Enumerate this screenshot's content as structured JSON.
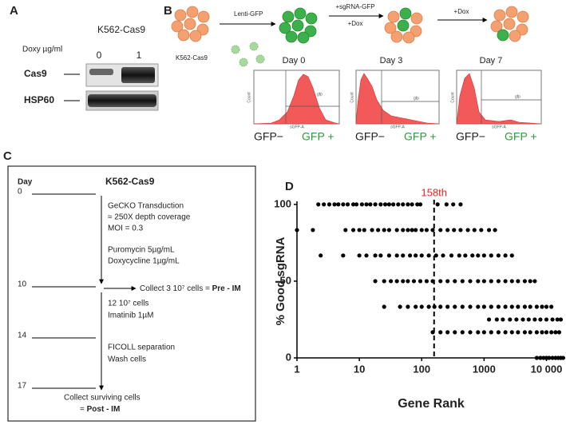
{
  "panel_a": {
    "label": "A",
    "title": "K562-Cas9",
    "dose_label": "Doxy µg/ml",
    "doses": [
      "0",
      "1"
    ],
    "rows": [
      "Cas9",
      "HSP60"
    ]
  },
  "panel_b": {
    "label": "B",
    "start": "K562-Cas9",
    "step1": "Lenti-GFP",
    "step2_top": "+sgRNA-GFP",
    "step2_bottom": "+Dox",
    "step3": "+Dox",
    "days": [
      "Day 0",
      "Day 3",
      "Day 7"
    ],
    "axis_y": "Count",
    "axis_x": "sGFP-A",
    "gate": "gfp",
    "neg": "GFP−",
    "pos": "GFP +"
  },
  "panel_c": {
    "label": "C",
    "day_header": "Day",
    "title": "K562-Cas9",
    "days": [
      "0",
      "10",
      "14",
      "17"
    ],
    "steps": [
      "GeCKO Transduction",
      "≈ 250X depth coverage",
      "MOI = 0.3",
      "Puromycin 5µg/mL",
      "Doxycycline 1µg/mL",
      "12 10⁷ cells",
      "Imatinib 1µM",
      "FICOLL separation",
      "Wash cells"
    ],
    "collect_pre": "Collect 3 10⁷ cells = ",
    "pre": "Pre - IM",
    "collect_post": "Collect surviving cells",
    "post_prefix": "= ",
    "post": "Post - IM"
  },
  "chart_data": {
    "type": "scatter",
    "label": "D",
    "x_label": "Gene Rank",
    "y_label": "% Good sgRNA",
    "xscale": "log",
    "xlim": [
      1,
      20000
    ],
    "xticks": [
      1,
      10,
      100,
      1000,
      {
        "value": 10000,
        "label": "10 000"
      }
    ],
    "ylim": [
      0,
      102
    ],
    "yticks": [
      0,
      50,
      100
    ],
    "color": "#000000",
    "annotation": {
      "x": 158,
      "label": "158th",
      "color": "#e8251f"
    },
    "series": [
      {
        "x": [
          2.2,
          2.7,
          3.3,
          4,
          4.6,
          5.5,
          6.5,
          8,
          9,
          11,
          13,
          15,
          18,
          22,
          26,
          30,
          35,
          42,
          50,
          60,
          70,
          85,
          95,
          180,
          250,
          320,
          420
        ],
        "values": [
          100,
          100,
          100,
          100,
          100,
          100,
          100,
          100,
          100,
          100,
          100,
          100,
          100,
          100,
          100,
          100,
          100,
          100,
          100,
          100,
          100,
          100,
          100,
          100,
          100,
          100,
          100
        ]
      },
      {
        "x": [
          1,
          1.8,
          6,
          8,
          10,
          12,
          16,
          20,
          25,
          30,
          40,
          50,
          60,
          70,
          80,
          100,
          120,
          150,
          200,
          260,
          330,
          420,
          550,
          700,
          900,
          1200,
          1500
        ],
        "values": [
          83.3,
          83.3,
          83.3,
          83.3,
          83.3,
          83.3,
          83.3,
          83.3,
          83.3,
          83.3,
          83.3,
          83.3,
          83.3,
          83.3,
          83.3,
          83.3,
          83.3,
          83.3,
          83.3,
          83.3,
          83.3,
          83.3,
          83.3,
          83.3,
          83.3,
          83.3,
          83.3
        ]
      },
      {
        "x": [
          2.4,
          5.5,
          10,
          13,
          18,
          22,
          30,
          40,
          50,
          65,
          80,
          100,
          130,
          170,
          220,
          300,
          400,
          500,
          650,
          800,
          1000,
          1300,
          1700,
          2200,
          2800
        ],
        "values": [
          66.7,
          66.7,
          66.7,
          66.7,
          66.7,
          66.7,
          66.7,
          66.7,
          66.7,
          66.7,
          66.7,
          66.7,
          66.7,
          66.7,
          66.7,
          66.7,
          66.7,
          66.7,
          66.7,
          66.7,
          66.7,
          66.7,
          66.7,
          66.7,
          66.7
        ]
      },
      {
        "x": [
          18,
          25,
          32,
          40,
          50,
          60,
          75,
          95,
          120,
          150,
          200,
          260,
          340,
          450,
          600,
          800,
          1000,
          1300,
          1700,
          2200,
          2800,
          3500,
          4500,
          5500,
          6500
        ],
        "values": [
          50,
          50,
          50,
          50,
          50,
          50,
          50,
          50,
          50,
          50,
          50,
          50,
          50,
          50,
          50,
          50,
          50,
          50,
          50,
          50,
          50,
          50,
          50,
          50,
          50
        ]
      },
      {
        "x": [
          25,
          45,
          60,
          80,
          100,
          130,
          160,
          200,
          260,
          340,
          450,
          600,
          800,
          1000,
          1300,
          1700,
          2200,
          2800,
          3500,
          4500,
          5500,
          7000,
          8500,
          10000,
          12000
        ],
        "values": [
          33.3,
          33.3,
          33.3,
          33.3,
          33.3,
          33.3,
          33.3,
          33.3,
          33.3,
          33.3,
          33.3,
          33.3,
          33.3,
          33.3,
          33.3,
          33.3,
          33.3,
          33.3,
          33.3,
          33.3,
          33.3,
          33.3,
          33.3,
          33.3,
          33.3
        ]
      },
      {
        "x": [
          1200,
          1600,
          2000,
          2600,
          3300,
          4200,
          5200,
          6500,
          8000,
          10000,
          12500,
          15000,
          17000
        ],
        "values": [
          25,
          25,
          25,
          25,
          25,
          25,
          25,
          25,
          25,
          25,
          25,
          25,
          25
        ]
      },
      {
        "x": [
          150,
          200,
          260,
          340,
          450,
          600,
          800,
          1000,
          1300,
          1700,
          2200,
          2800,
          3500,
          4500,
          5500,
          7000,
          8500,
          10000,
          12000,
          14000,
          16000
        ],
        "values": [
          16.7,
          16.7,
          16.7,
          16.7,
          16.7,
          16.7,
          16.7,
          16.7,
          16.7,
          16.7,
          16.7,
          16.7,
          16.7,
          16.7,
          16.7,
          16.7,
          16.7,
          16.7,
          16.7,
          16.7,
          16.7
        ]
      },
      {
        "x": [
          7000,
          8000,
          9000,
          10000,
          11000,
          12500,
          14000,
          15500,
          17000,
          18500
        ],
        "values": [
          0,
          0,
          0,
          0,
          0,
          0,
          0,
          0,
          0,
          0
        ]
      }
    ]
  }
}
